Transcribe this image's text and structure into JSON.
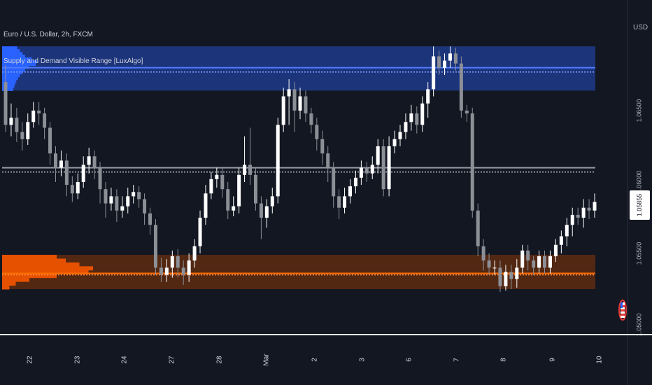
{
  "header": {
    "symbol_title": "Euro / U.S. Dollar, 2h, FXCM",
    "indicator_title": "Supply and Demand Visible Range [LuxAlgo]"
  },
  "price_axis": {
    "currency": "USD",
    "ticks": [
      "1.06500",
      "1.06000",
      "1.05500",
      "1.05000"
    ],
    "last_price": "1.05855"
  },
  "time_axis": {
    "ticks": [
      "22",
      "23",
      "24",
      "27",
      "28",
      "Mar",
      "2",
      "3",
      "6",
      "7",
      "8",
      "9",
      "10"
    ]
  },
  "colors": {
    "background": "#131722",
    "supply_zone": "#1e3a8a",
    "supply_profile": "#2962ff",
    "demand_zone": "#5a2a12",
    "demand_profile": "#e65100",
    "equilibrium": "#9598a1",
    "bull_candle": "#ffffff",
    "bear_candle": "#8c8f96"
  },
  "chart_data": {
    "type": "candlestick",
    "title": "Euro / U.S. Dollar, 2h, FXCM",
    "ylabel": "USD",
    "ylim": [
      1.0498,
      1.0702
    ],
    "zones": {
      "supply": {
        "top": 1.0695,
        "bottom": 1.0664,
        "poc": 1.068,
        "avg": 1.0677
      },
      "demand": {
        "top": 1.0549,
        "bottom": 1.0525,
        "poc": 1.0539,
        "avg": 1.0535
      },
      "equilibrium": {
        "upper": 1.061,
        "lower": 1.0607
      }
    },
    "candles": [
      [
        1.067,
        1.064,
        1.0682,
        1.0635
      ],
      [
        1.064,
        1.0645,
        1.0655,
        1.0632
      ],
      [
        1.0645,
        1.0635,
        1.0652,
        1.0628
      ],
      [
        1.0635,
        1.063,
        1.0642,
        1.0622
      ],
      [
        1.063,
        1.0642,
        1.0648,
        1.0626
      ],
      [
        1.0642,
        1.065,
        1.0656,
        1.0638
      ],
      [
        1.065,
        1.0648,
        1.0656,
        1.064
      ],
      [
        1.0648,
        1.0638,
        1.0652,
        1.063
      ],
      [
        1.0638,
        1.062,
        1.0642,
        1.0612
      ],
      [
        1.062,
        1.061,
        1.0625,
        1.06
      ],
      [
        1.061,
        1.0615,
        1.0622,
        1.0604
      ],
      [
        1.0615,
        1.0598,
        1.062,
        1.059
      ],
      [
        1.0598,
        1.0592,
        1.0604,
        1.0586
      ],
      [
        1.0592,
        1.06,
        1.0606,
        1.0588
      ],
      [
        1.06,
        1.0612,
        1.0618,
        1.0596
      ],
      [
        1.0612,
        1.0618,
        1.0624,
        1.0606
      ],
      [
        1.0618,
        1.061,
        1.0622,
        1.0602
      ],
      [
        1.061,
        1.0595,
        1.0614,
        1.0585
      ],
      [
        1.0595,
        1.0585,
        1.06,
        1.0575
      ],
      [
        1.0585,
        1.059,
        1.0596,
        1.058
      ],
      [
        1.059,
        1.058,
        1.0595,
        1.0572
      ],
      [
        1.058,
        1.0583,
        1.059,
        1.0575
      ],
      [
        1.0583,
        1.059,
        1.0596,
        1.0578
      ],
      [
        1.059,
        1.0593,
        1.0598,
        1.0585
      ],
      [
        1.0593,
        1.0588,
        1.0597,
        1.0582
      ],
      [
        1.0588,
        1.0578,
        1.0592,
        1.057
      ],
      [
        1.0578,
        1.057,
        1.0582,
        1.0563
      ],
      [
        1.057,
        1.054,
        1.0574,
        1.0535
      ],
      [
        1.054,
        1.0535,
        1.0547,
        1.053
      ],
      [
        1.0535,
        1.054,
        1.0546,
        1.053
      ],
      [
        1.054,
        1.0548,
        1.0552,
        1.0533
      ],
      [
        1.0548,
        1.054,
        1.0553,
        1.0533
      ],
      [
        1.054,
        1.0535,
        1.0545,
        1.0528
      ],
      [
        1.0535,
        1.0545,
        1.055,
        1.053
      ],
      [
        1.0545,
        1.0555,
        1.056,
        1.054
      ],
      [
        1.0555,
        1.0575,
        1.058,
        1.055
      ],
      [
        1.0575,
        1.0592,
        1.0598,
        1.057
      ],
      [
        1.0592,
        1.0602,
        1.0607,
        1.0588
      ],
      [
        1.0602,
        1.0605,
        1.061,
        1.0596
      ],
      [
        1.0605,
        1.0595,
        1.061,
        1.0589
      ],
      [
        1.0595,
        1.058,
        1.06,
        1.0574
      ],
      [
        1.058,
        1.0583,
        1.059,
        1.0576
      ],
      [
        1.0583,
        1.0605,
        1.061,
        1.0578
      ],
      [
        1.0605,
        1.0612,
        1.0632,
        1.06
      ],
      [
        1.0612,
        1.0605,
        1.0638,
        1.0598
      ],
      [
        1.0605,
        1.0585,
        1.061,
        1.058
      ],
      [
        1.0585,
        1.0575,
        1.059,
        1.056
      ],
      [
        1.0575,
        1.0583,
        1.0588,
        1.0568
      ],
      [
        1.0583,
        1.059,
        1.0596,
        1.0578
      ],
      [
        1.059,
        1.064,
        1.0645,
        1.0585
      ],
      [
        1.064,
        1.066,
        1.0666,
        1.0635
      ],
      [
        1.066,
        1.0665,
        1.0672,
        1.064
      ],
      [
        1.0665,
        1.065,
        1.067,
        1.0635
      ],
      [
        1.065,
        1.066,
        1.0666,
        1.0644
      ],
      [
        1.066,
        1.0648,
        1.0664,
        1.0642
      ],
      [
        1.0648,
        1.064,
        1.0652,
        1.0634
      ],
      [
        1.064,
        1.063,
        1.0645,
        1.0622
      ],
      [
        1.063,
        1.062,
        1.0636,
        1.0612
      ],
      [
        1.062,
        1.061,
        1.0625,
        1.06
      ],
      [
        1.061,
        1.059,
        1.0614,
        1.0582
      ],
      [
        1.059,
        1.0582,
        1.0595,
        1.0574
      ],
      [
        1.0582,
        1.059,
        1.0596,
        1.0578
      ],
      [
        1.059,
        1.0597,
        1.0602,
        1.0585
      ],
      [
        1.0597,
        1.0603,
        1.0608,
        1.0592
      ],
      [
        1.0603,
        1.061,
        1.0615,
        1.0598
      ],
      [
        1.061,
        1.0606,
        1.0614,
        1.06
      ],
      [
        1.0606,
        1.0612,
        1.0618,
        1.0602
      ],
      [
        1.0612,
        1.0625,
        1.063,
        1.0606
      ],
      [
        1.0625,
        1.0595,
        1.063,
        1.059
      ],
      [
        1.0595,
        1.0625,
        1.0632,
        1.059
      ],
      [
        1.0625,
        1.063,
        1.0636,
        1.062
      ],
      [
        1.063,
        1.0635,
        1.064,
        1.0625
      ],
      [
        1.0635,
        1.0642,
        1.0648,
        1.063
      ],
      [
        1.0642,
        1.0648,
        1.0654,
        1.0636
      ],
      [
        1.0648,
        1.064,
        1.0653,
        1.0634
      ],
      [
        1.064,
        1.0655,
        1.066,
        1.0635
      ],
      [
        1.0655,
        1.0665,
        1.067,
        1.0645
      ],
      [
        1.0665,
        1.0688,
        1.0695,
        1.066
      ],
      [
        1.0688,
        1.068,
        1.0692,
        1.0675
      ],
      [
        1.068,
        1.0685,
        1.069,
        1.0675
      ],
      [
        1.0685,
        1.069,
        1.0695,
        1.068
      ],
      [
        1.069,
        1.0683,
        1.0694,
        1.0678
      ],
      [
        1.0683,
        1.065,
        1.0688,
        1.0645
      ],
      [
        1.065,
        1.0648,
        1.0654,
        1.0642
      ],
      [
        1.0648,
        1.058,
        1.0652,
        1.0575
      ],
      [
        1.058,
        1.0555,
        1.0585,
        1.0548
      ],
      [
        1.0555,
        1.0545,
        1.056,
        1.0538
      ],
      [
        1.0545,
        1.054,
        1.055,
        1.0535
      ],
      [
        1.054,
        1.054,
        1.0545,
        1.0535
      ],
      [
        1.054,
        1.0527,
        1.0545,
        1.0523
      ],
      [
        1.0527,
        1.0537,
        1.0542,
        1.0524
      ],
      [
        1.0537,
        1.0532,
        1.0542,
        1.0525
      ],
      [
        1.0532,
        1.054,
        1.0546,
        1.0526
      ],
      [
        1.054,
        1.0552,
        1.0556,
        1.0536
      ],
      [
        1.0552,
        1.0545,
        1.0556,
        1.0538
      ],
      [
        1.0545,
        1.054,
        1.0548,
        1.0535
      ],
      [
        1.054,
        1.0548,
        1.0552,
        1.0536
      ],
      [
        1.0548,
        1.054,
        1.0552,
        1.0536
      ],
      [
        1.054,
        1.0548,
        1.0552,
        1.0536
      ],
      [
        1.0548,
        1.0556,
        1.056,
        1.0544
      ],
      [
        1.0556,
        1.0562,
        1.0566,
        1.055
      ],
      [
        1.0562,
        1.057,
        1.0575,
        1.0555
      ],
      [
        1.057,
        1.0577,
        1.0582,
        1.0562
      ],
      [
        1.0577,
        1.0575,
        1.0582,
        1.057
      ],
      [
        1.0575,
        1.0582,
        1.0588,
        1.0568
      ],
      [
        1.0582,
        1.058,
        1.0588,
        1.0574
      ],
      [
        1.058,
        1.0586,
        1.0592,
        1.0575
      ]
    ]
  }
}
